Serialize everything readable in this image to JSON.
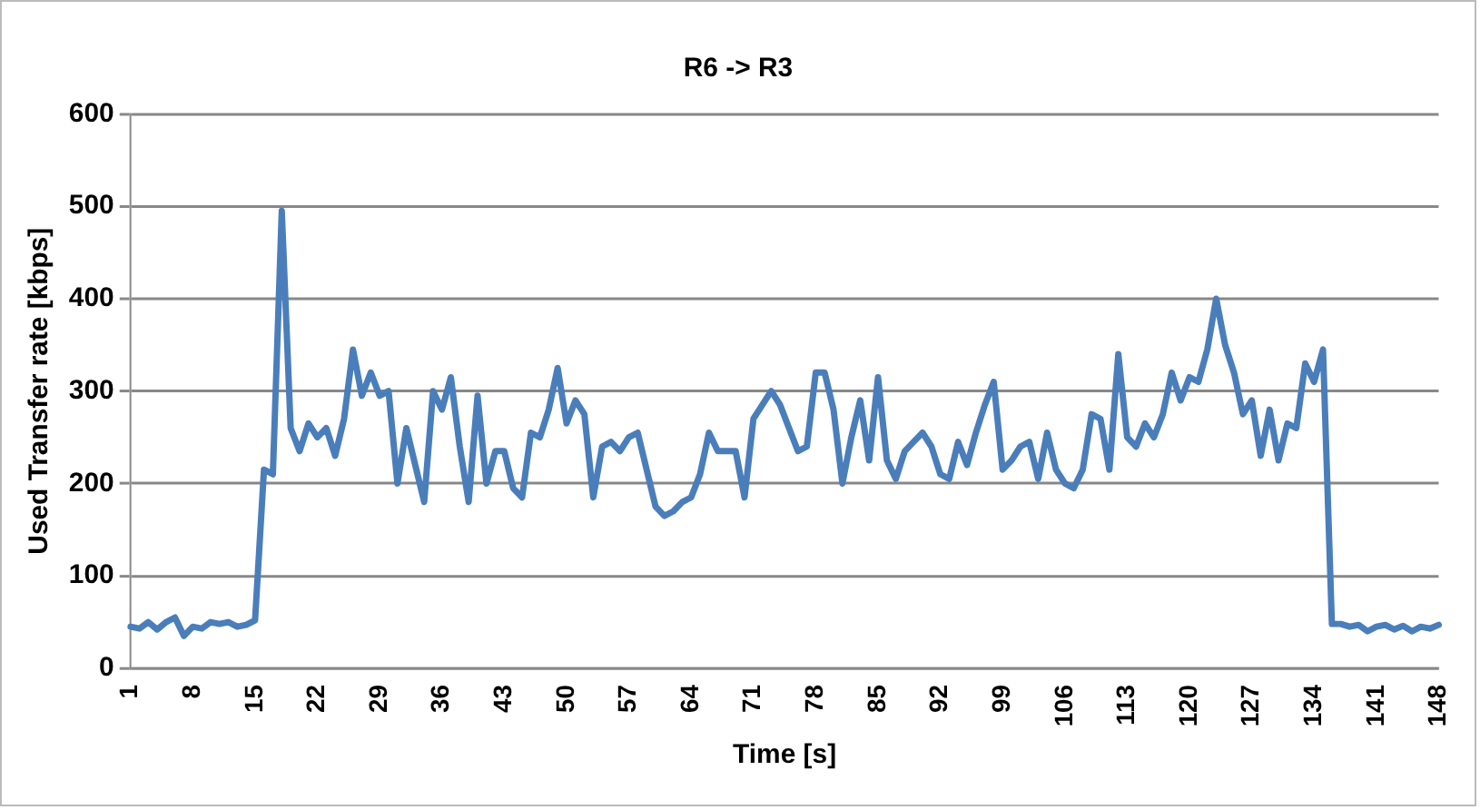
{
  "chart_data": {
    "type": "line",
    "title": "R6 -> R3",
    "xlabel": "Time [s]",
    "ylabel": "Used Transfer rate [kbps]",
    "categories": [
      "1",
      null,
      null,
      null,
      null,
      null,
      null,
      "8",
      null,
      null,
      null,
      null,
      null,
      null,
      "15",
      null,
      null,
      null,
      null,
      null,
      null,
      "22",
      null,
      null,
      null,
      null,
      null,
      null,
      "29",
      null,
      null,
      null,
      null,
      null,
      null,
      "36",
      null,
      null,
      null,
      null,
      null,
      null,
      "43",
      null,
      null,
      null,
      null,
      null,
      null,
      "50",
      null,
      null,
      null,
      null,
      null,
      null,
      "57",
      null,
      null,
      null,
      null,
      null,
      null,
      "64",
      null,
      null,
      null,
      null,
      null,
      null,
      "71",
      null,
      null,
      null,
      null,
      null,
      null,
      "78",
      null,
      null,
      null,
      null,
      null,
      null,
      "85",
      null,
      null,
      null,
      null,
      null,
      null,
      "92",
      null,
      null,
      null,
      null,
      null,
      null,
      "99",
      null,
      null,
      null,
      null,
      null,
      null,
      "106",
      null,
      null,
      null,
      null,
      null,
      null,
      "113",
      null,
      null,
      null,
      null,
      null,
      null,
      "120",
      null,
      null,
      null,
      null,
      null,
      null,
      "127",
      null,
      null,
      null,
      null,
      null,
      null,
      "134",
      null,
      null,
      null,
      null,
      null,
      null,
      "141",
      null,
      null,
      null,
      null,
      null,
      null,
      "148"
    ],
    "series": [
      {
        "color": "#4a7ebb",
        "values": [
          45,
          43,
          50,
          42,
          50,
          55,
          35,
          45,
          43,
          50,
          48,
          50,
          45,
          47,
          52,
          215,
          210,
          495,
          260,
          235,
          265,
          250,
          260,
          230,
          270,
          345,
          295,
          320,
          295,
          300,
          200,
          260,
          220,
          180,
          300,
          280,
          315,
          240,
          180,
          295,
          200,
          235,
          235,
          195,
          185,
          255,
          250,
          280,
          325,
          265,
          290,
          275,
          185,
          240,
          245,
          235,
          250,
          255,
          215,
          175,
          165,
          170,
          180,
          185,
          210,
          255,
          235,
          235,
          235,
          185,
          270,
          285,
          300,
          285,
          260,
          235,
          240,
          320,
          320,
          280,
          200,
          250,
          290,
          225,
          315,
          225,
          205,
          235,
          245,
          255,
          240,
          210,
          205,
          245,
          220,
          255,
          285,
          310,
          215,
          225,
          240,
          245,
          205,
          255,
          215,
          200,
          195,
          215,
          275,
          270,
          215,
          340,
          250,
          240,
          265,
          250,
          275,
          320,
          290,
          315,
          310,
          345,
          400,
          350,
          320,
          275,
          290,
          230,
          280,
          225,
          265,
          260,
          330,
          310,
          345,
          48,
          48,
          45,
          47,
          40,
          45,
          47,
          42,
          46,
          40,
          45,
          43,
          47
        ]
      }
    ],
    "ylim": [
      0,
      600
    ],
    "yticks": [
      0,
      100,
      200,
      300,
      400,
      500,
      600
    ],
    "grid": "y",
    "legend": false,
    "marker": "none",
    "line_style": "solid"
  }
}
